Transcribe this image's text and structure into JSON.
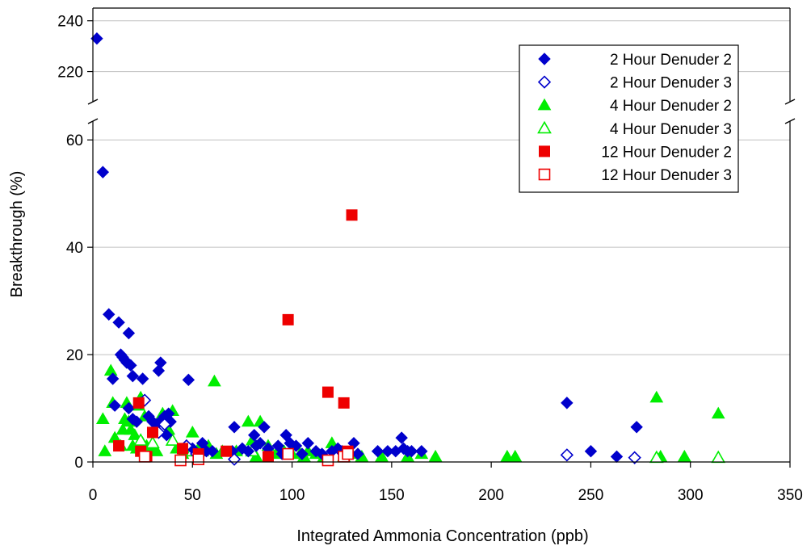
{
  "chart_data": {
    "type": "scatter",
    "xlabel": "Integrated Ammonia Concentration (ppb)",
    "ylabel": "Breakthrough (%)",
    "xlim": [
      0,
      350
    ],
    "ylim_lower": [
      0,
      65
    ],
    "ylim_upper": [
      210,
      245
    ],
    "axis_break": true,
    "grid": "horizontal",
    "legend_placement": "top-right",
    "x_ticks": [
      "0",
      "50",
      "100",
      "150",
      "200",
      "250",
      "300",
      "350"
    ],
    "y_ticks_lower": [
      "0",
      "20",
      "40",
      "60"
    ],
    "y_ticks_upper": [
      "220",
      "240"
    ],
    "series": [
      {
        "name": "2 Hour Denuder 2",
        "marker": "diamond",
        "filled": true,
        "color": "#0000cc",
        "points": [
          [
            2,
            233
          ],
          [
            5,
            54
          ],
          [
            8,
            27.5
          ],
          [
            10,
            15.5
          ],
          [
            11,
            10.5
          ],
          [
            13,
            26
          ],
          [
            14,
            20
          ],
          [
            15,
            19.5
          ],
          [
            16,
            19
          ],
          [
            17,
            18.5
          ],
          [
            18,
            24
          ],
          [
            19,
            18
          ],
          [
            18,
            10
          ],
          [
            20,
            16
          ],
          [
            20,
            8
          ],
          [
            22,
            7.5
          ],
          [
            25,
            15.5
          ],
          [
            24,
            11
          ],
          [
            28,
            8.5
          ],
          [
            30,
            7.5
          ],
          [
            32,
            7
          ],
          [
            33,
            17
          ],
          [
            34,
            18.5
          ],
          [
            35,
            8
          ],
          [
            36,
            8.5
          ],
          [
            37,
            5
          ],
          [
            38,
            9
          ],
          [
            39,
            7.5
          ],
          [
            48,
            15.3
          ],
          [
            50,
            2.5
          ],
          [
            55,
            3.5
          ],
          [
            57,
            2
          ],
          [
            60,
            2
          ],
          [
            70,
            2
          ],
          [
            71,
            6.5
          ],
          [
            75,
            2.5
          ],
          [
            78,
            2
          ],
          [
            81,
            5
          ],
          [
            82,
            3
          ],
          [
            84,
            3.5
          ],
          [
            86,
            6.5
          ],
          [
            88,
            2.5
          ],
          [
            93,
            3
          ],
          [
            95,
            1.5
          ],
          [
            97,
            5
          ],
          [
            99,
            3.5
          ],
          [
            102,
            3
          ],
          [
            105,
            1.5
          ],
          [
            108,
            3.5
          ],
          [
            112,
            2
          ],
          [
            115,
            1.5
          ],
          [
            120,
            2
          ],
          [
            123,
            2.5
          ],
          [
            125,
            2
          ],
          [
            131,
            3.5
          ],
          [
            133,
            1.5
          ],
          [
            143,
            2
          ],
          [
            148,
            2
          ],
          [
            152,
            2
          ],
          [
            155,
            4.5
          ],
          [
            156,
            2.5
          ],
          [
            158,
            2
          ],
          [
            160,
            2
          ],
          [
            165,
            2
          ],
          [
            238,
            11
          ],
          [
            250,
            2
          ],
          [
            263,
            1
          ],
          [
            273,
            6.5
          ]
        ]
      },
      {
        "name": "2 Hour Denuder 3",
        "marker": "diamond",
        "filled": false,
        "color": "#0000cc",
        "points": [
          [
            26,
            11.5
          ],
          [
            33,
            5.5
          ],
          [
            36,
            7
          ],
          [
            47,
            3
          ],
          [
            52,
            1.5
          ],
          [
            71,
            0.5
          ],
          [
            238,
            1.3
          ],
          [
            272,
            0.8
          ]
        ]
      },
      {
        "name": "4 Hour Denuder 2",
        "marker": "triangle",
        "filled": true,
        "color": "#00ee00",
        "points": [
          [
            5,
            8
          ],
          [
            6,
            2
          ],
          [
            9,
            17
          ],
          [
            10,
            11
          ],
          [
            11,
            4.5
          ],
          [
            14,
            3
          ],
          [
            15,
            6
          ],
          [
            16,
            8
          ],
          [
            17,
            11
          ],
          [
            18,
            7.5
          ],
          [
            19,
            6
          ],
          [
            20,
            3
          ],
          [
            21,
            5
          ],
          [
            22,
            2.5
          ],
          [
            23,
            10.5
          ],
          [
            24,
            12
          ],
          [
            25,
            3.5
          ],
          [
            26,
            8.5
          ],
          [
            27,
            3
          ],
          [
            30,
            2.5
          ],
          [
            32,
            2
          ],
          [
            35,
            9
          ],
          [
            38,
            6
          ],
          [
            40,
            9.5
          ],
          [
            42,
            2.5
          ],
          [
            45,
            1.5
          ],
          [
            47,
            3
          ],
          [
            50,
            5.5
          ],
          [
            53,
            2.5
          ],
          [
            55,
            2
          ],
          [
            58,
            3
          ],
          [
            61,
            15
          ],
          [
            62,
            1.5
          ],
          [
            65,
            2
          ],
          [
            72,
            2
          ],
          [
            78,
            7.5
          ],
          [
            80,
            4
          ],
          [
            82,
            1
          ],
          [
            84,
            7.5
          ],
          [
            88,
            3
          ],
          [
            92,
            1.5
          ],
          [
            96,
            2
          ],
          [
            100,
            1.5
          ],
          [
            104,
            1.5
          ],
          [
            106,
            1
          ],
          [
            108,
            2
          ],
          [
            112,
            1.5
          ],
          [
            116,
            1
          ],
          [
            120,
            3.5
          ],
          [
            126,
            1
          ],
          [
            130,
            1.5
          ],
          [
            135,
            1
          ],
          [
            145,
            1
          ],
          [
            158,
            1
          ],
          [
            165,
            1.5
          ],
          [
            172,
            1
          ],
          [
            208,
            1
          ],
          [
            212,
            1
          ],
          [
            283,
            12
          ],
          [
            285,
            1
          ],
          [
            297,
            1
          ],
          [
            314,
            9
          ]
        ]
      },
      {
        "name": "4 Hour Denuder 3",
        "marker": "triangle",
        "filled": false,
        "color": "#00ee00",
        "points": [
          [
            24,
            4
          ],
          [
            30,
            3.5
          ],
          [
            40,
            4
          ],
          [
            50,
            2
          ],
          [
            80,
            2
          ],
          [
            95,
            2
          ],
          [
            283,
            0.8
          ],
          [
            314,
            0.8
          ]
        ]
      },
      {
        "name": "12 Hour Denuder 2",
        "marker": "square",
        "filled": true,
        "color": "#ee0000",
        "points": [
          [
            13,
            3
          ],
          [
            23,
            11
          ],
          [
            24,
            2
          ],
          [
            27,
            1
          ],
          [
            30,
            5.5
          ],
          [
            45,
            2.5
          ],
          [
            53,
            1.5
          ],
          [
            67,
            2
          ],
          [
            88,
            1
          ],
          [
            98,
            26.5
          ],
          [
            118,
            13
          ],
          [
            126,
            11
          ],
          [
            130,
            46
          ],
          [
            128,
            2
          ]
        ]
      },
      {
        "name": "12 Hour Denuder 3",
        "marker": "square",
        "filled": false,
        "color": "#ee0000",
        "points": [
          [
            26,
            1
          ],
          [
            44,
            0.3
          ],
          [
            53,
            0.5
          ],
          [
            98,
            1.5
          ],
          [
            118,
            0.3
          ],
          [
            126,
            1
          ],
          [
            128,
            1.5
          ]
        ]
      }
    ]
  }
}
